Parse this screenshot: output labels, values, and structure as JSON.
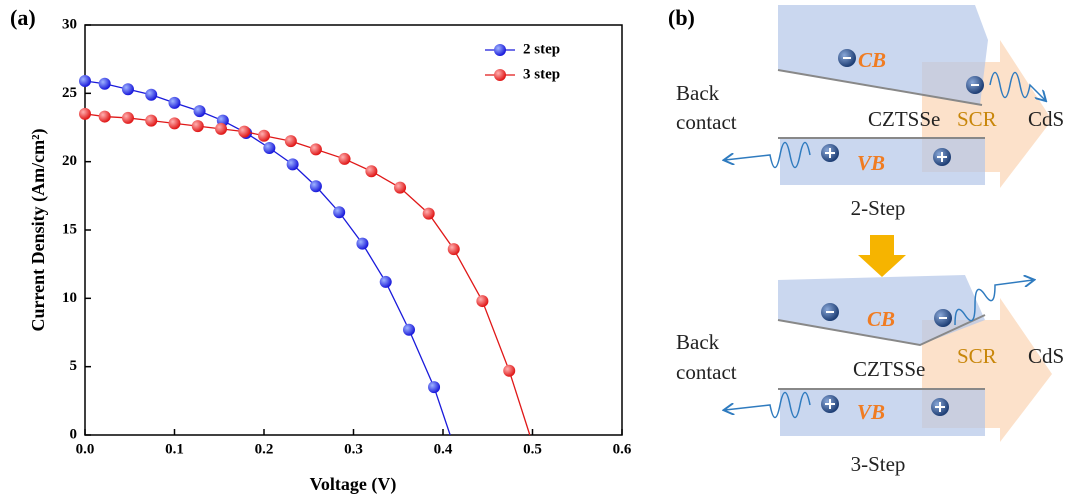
{
  "chart_data": {
    "type": "line",
    "panel_label": "(a)",
    "xlabel": "Voltage (V)",
    "ylabel": "Current Density (Am/cm²)",
    "xlim": [
      0,
      0.6
    ],
    "xticks": [
      {
        "value": 0,
        "label": "0.0"
      },
      0.1,
      0.2,
      0.3,
      0.4,
      0.5,
      0.6
    ],
    "ylim": [
      0,
      30
    ],
    "yticks": [
      0,
      5,
      10,
      15,
      20,
      25,
      30
    ],
    "legend": "upper right",
    "series": [
      {
        "name": "2 step",
        "color": "#1a1adb",
        "voc": 0.408,
        "x": [
          0,
          0.022,
          0.048,
          0.074,
          0.1,
          0.128,
          0.154,
          0.18,
          0.206,
          0.232,
          0.258,
          0.284,
          0.31,
          0.336,
          0.362,
          0.39
        ],
        "values": [
          25.9,
          25.7,
          25.3,
          24.9,
          24.3,
          23.7,
          23.0,
          22.1,
          21.0,
          19.8,
          18.2,
          16.3,
          14.0,
          11.2,
          7.7,
          3.5
        ]
      },
      {
        "name": "3 step",
        "color": "#e01818",
        "voc": 0.497,
        "x": [
          0,
          0.022,
          0.048,
          0.074,
          0.1,
          0.126,
          0.152,
          0.178,
          0.2,
          0.23,
          0.258,
          0.29,
          0.32,
          0.352,
          0.384,
          0.412,
          0.444,
          0.474
        ],
        "values": [
          23.5,
          23.3,
          23.2,
          23.0,
          22.8,
          22.6,
          22.4,
          22.2,
          21.9,
          21.5,
          20.9,
          20.2,
          19.3,
          18.1,
          16.2,
          13.6,
          9.8,
          4.7
        ]
      }
    ]
  },
  "diagram": {
    "panel_label": "(b)",
    "top": {
      "cb": "CB",
      "vb": "VB",
      "scr": "SCR",
      "cds": "CdS",
      "absorber": "CZTSSe",
      "back": "Back",
      "contact": "contact",
      "caption": "2-Step"
    },
    "bottom": {
      "cb": "CB",
      "vb": "VB",
      "scr": "SCR",
      "cds": "CdS",
      "absorber": "CZTSSe",
      "back": "Back",
      "contact": "contact",
      "caption": "3-Step"
    }
  }
}
